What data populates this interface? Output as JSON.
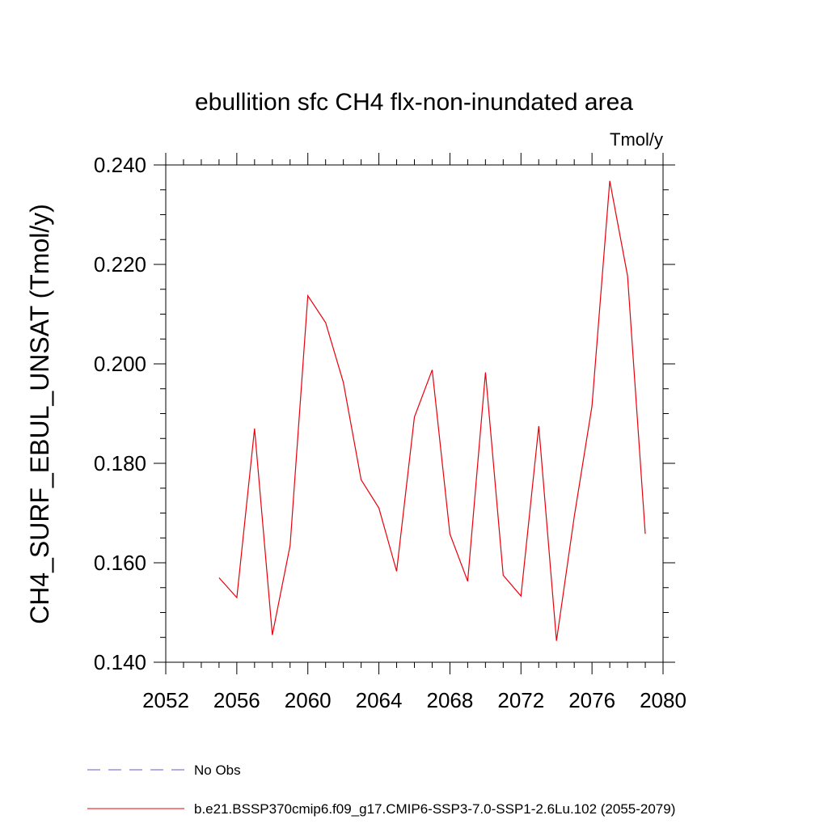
{
  "chart_data": {
    "type": "line",
    "title": "ebullition sfc CH4 flx-non-inundated area",
    "units_label": "Tmol/y",
    "xlabel": "",
    "ylabel": "CH4_SURF_EBUL_UNSAT  (Tmol/y)",
    "xlim": [
      2052,
      2080
    ],
    "ylim": [
      0.14,
      0.24
    ],
    "x_ticks": [
      2052,
      2056,
      2060,
      2064,
      2068,
      2072,
      2076,
      2080
    ],
    "x_tick_labels": [
      "2052",
      "2056",
      "2060",
      "2064",
      "2068",
      "2072",
      "2076",
      "2080"
    ],
    "y_ticks": [
      0.14,
      0.16,
      0.18,
      0.2,
      0.22,
      0.24
    ],
    "y_tick_labels": [
      "0.140",
      "0.160",
      "0.180",
      "0.200",
      "0.220",
      "0.240"
    ],
    "grid": false,
    "legend_position": "bottom",
    "legend": [
      {
        "label": "No Obs",
        "style": "dashed",
        "color": "#6a5acd"
      },
      {
        "label": "b.e21.BSSP370cmip6.f09_g17.CMIP6-SSP3-7.0-SSP1-2.6Lu.102 (2055-2079)",
        "style": "solid",
        "color": "#e8000b"
      }
    ],
    "series": [
      {
        "name": "b.e21.BSSP370cmip6.f09_g17.CMIP6-SSP3-7.0-SSP1-2.6Lu.102 (2055-2079)",
        "color": "#e8000b",
        "x": [
          2055,
          2056,
          2057,
          2058,
          2059,
          2060,
          2061,
          2062,
          2063,
          2064,
          2065,
          2066,
          2067,
          2068,
          2069,
          2070,
          2071,
          2072,
          2073,
          2074,
          2075,
          2076,
          2077,
          2078,
          2079
        ],
        "y": [
          0.157,
          0.153,
          0.187,
          0.1455,
          0.1635,
          0.2137,
          0.2083,
          0.1963,
          0.1767,
          0.171,
          0.1583,
          0.1893,
          0.1988,
          0.1658,
          0.1563,
          0.1983,
          0.1575,
          0.1533,
          0.1875,
          0.1443,
          0.1693,
          0.1915,
          0.2368,
          0.2177,
          0.1658
        ]
      }
    ]
  }
}
